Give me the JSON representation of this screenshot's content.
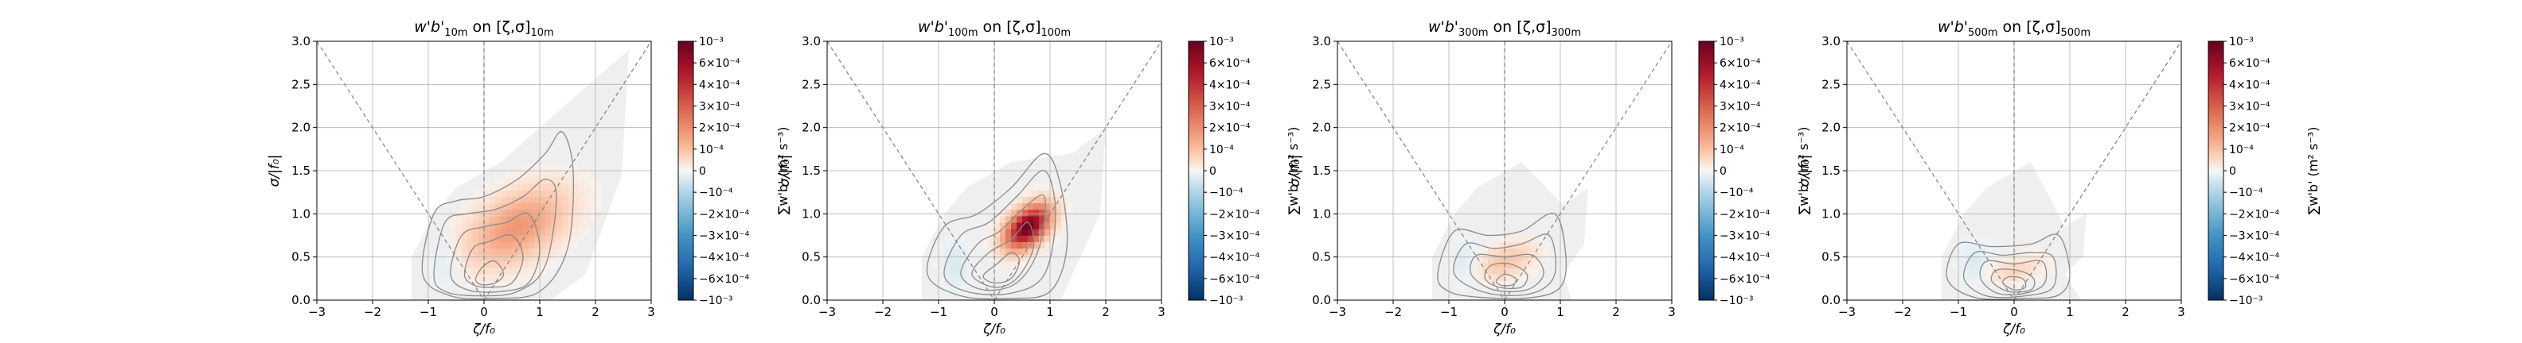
{
  "figure": {
    "layout": "1x4 panels"
  },
  "chart_data": [
    {
      "type": "heatmap",
      "title_main": "w'b'",
      "title_sub": "10m",
      "title_mid": " on [ζ,σ]",
      "title_end": "10m",
      "xlabel": "ζ/f₀",
      "ylabel": "σ/|f₀|",
      "xlim": [
        -3,
        3
      ],
      "ylim": [
        0,
        3
      ],
      "xticks": [
        "−3",
        "−2",
        "−1",
        "0",
        "1",
        "2",
        "3"
      ],
      "yticks": [
        "0.0",
        "0.5",
        "1.0",
        "1.5",
        "2.0",
        "2.5",
        "3.0"
      ],
      "grid": true,
      "colorbar": {
        "label": "∑w'b' (m² s⁻³)",
        "ticks": [
          "10⁻³",
          "6×10⁻⁴",
          "4×10⁻⁴",
          "3×10⁻⁴",
          "2×10⁻⁴",
          "10⁻⁴",
          "0",
          "−10⁻⁴",
          "−2×10⁻⁴",
          "−3×10⁻⁴",
          "−4×10⁻⁴",
          "−6×10⁻⁴",
          "−10⁻³"
        ],
        "cmap": "RdBu_r"
      },
      "hotspot": {
        "x": 0.6,
        "y": 0.85,
        "intensity": 0.3,
        "sx": 0.8,
        "sy": 0.4
      },
      "background_extent": {
        "xmax": 2.6,
        "ymax": 2.9
      },
      "contours": [
        {
          "x": [
            -1.1,
            -0.9,
            -0.5,
            0,
            0.6,
            1.1,
            1.4,
            1.6,
            1.5,
            1.0,
            0.2,
            -0.6,
            -1.1
          ],
          "y": [
            0.3,
            1.0,
            1.15,
            1.2,
            1.4,
            1.7,
            1.95,
            1.5,
            0.6,
            0.1,
            0.02,
            0.05,
            0.3
          ]
        },
        {
          "x": [
            -0.9,
            -0.7,
            -0.3,
            0.2,
            0.7,
            1.1,
            1.3,
            1.1,
            0.6,
            -0.1,
            -0.7,
            -0.9
          ],
          "y": [
            0.3,
            0.9,
            1.0,
            1.05,
            1.2,
            1.4,
            1.2,
            0.4,
            0.1,
            0.05,
            0.1,
            0.3
          ]
        },
        {
          "x": [
            -0.6,
            -0.4,
            0,
            0.4,
            0.8,
            1.0,
            0.8,
            0.3,
            -0.3,
            -0.6
          ],
          "y": [
            0.3,
            0.75,
            0.85,
            0.9,
            1.0,
            0.6,
            0.2,
            0.1,
            0.12,
            0.3
          ]
        },
        {
          "x": [
            -0.35,
            -0.2,
            0.1,
            0.5,
            0.7,
            0.5,
            0.1,
            -0.2,
            -0.35
          ],
          "y": [
            0.3,
            0.6,
            0.68,
            0.75,
            0.5,
            0.2,
            0.15,
            0.18,
            0.3
          ]
        },
        {
          "x": [
            -0.15,
            0,
            0.2,
            0.35,
            0.2,
            -0.05,
            -0.15
          ],
          "y": [
            0.25,
            0.4,
            0.45,
            0.3,
            0.2,
            0.18,
            0.25
          ]
        }
      ]
    },
    {
      "type": "heatmap",
      "title_main": "w'b'",
      "title_sub": "100m",
      "title_mid": " on [ζ,σ]",
      "title_end": "100m",
      "xlabel": "ζ/f₀",
      "ylabel": "σ/|f₀|",
      "xlim": [
        -3,
        3
      ],
      "ylim": [
        0,
        3
      ],
      "xticks": [
        "−3",
        "−2",
        "−1",
        "0",
        "1",
        "2",
        "3"
      ],
      "yticks": [
        "0.0",
        "0.5",
        "1.0",
        "1.5",
        "2.0",
        "2.5",
        "3.0"
      ],
      "grid": true,
      "colorbar": {
        "label": "∑w'b' (m² s⁻³)",
        "ticks": [
          "10⁻³",
          "6×10⁻⁴",
          "4×10⁻⁴",
          "3×10⁻⁴",
          "2×10⁻⁴",
          "10⁻⁴",
          "0",
          "−10⁻⁴",
          "−2×10⁻⁴",
          "−3×10⁻⁴",
          "−4×10⁻⁴",
          "−6×10⁻⁴",
          "−10⁻³"
        ],
        "cmap": "RdBu_r"
      },
      "hotspot": {
        "x": 0.6,
        "y": 0.85,
        "intensity": 1.0,
        "sx": 0.35,
        "sy": 0.22
      },
      "background_extent": {
        "xmax": 2.0,
        "ymax": 2.0
      },
      "contours": [
        {
          "x": [
            -1.2,
            -0.9,
            -0.3,
            0.3,
            0.9,
            1.2,
            1.3,
            1.0,
            0.3,
            -0.6,
            -1.2
          ],
          "y": [
            0.3,
            0.85,
            1.0,
            1.3,
            1.7,
            1.3,
            0.6,
            0.1,
            0.02,
            0.05,
            0.3
          ]
        },
        {
          "x": [
            -0.9,
            -0.6,
            -0.1,
            0.4,
            0.9,
            1.1,
            0.9,
            0.3,
            -0.5,
            -0.9
          ],
          "y": [
            0.3,
            0.75,
            0.9,
            1.2,
            1.5,
            1.0,
            0.3,
            0.08,
            0.1,
            0.3
          ]
        },
        {
          "x": [
            -0.6,
            -0.3,
            0.1,
            0.5,
            0.9,
            0.8,
            0.4,
            -0.2,
            -0.6
          ],
          "y": [
            0.3,
            0.65,
            0.8,
            1.05,
            1.2,
            0.6,
            0.2,
            0.12,
            0.3
          ]
        },
        {
          "x": [
            -0.4,
            -0.1,
            0.3,
            0.6,
            0.7,
            0.4,
            0,
            -0.4
          ],
          "y": [
            0.3,
            0.55,
            0.7,
            0.9,
            0.6,
            0.25,
            0.15,
            0.3
          ]
        },
        {
          "x": [
            -0.2,
            0.05,
            0.3,
            0.45,
            0.3,
            0,
            -0.2
          ],
          "y": [
            0.28,
            0.42,
            0.55,
            0.45,
            0.25,
            0.2,
            0.28
          ]
        }
      ]
    },
    {
      "type": "heatmap",
      "title_main": "w'b'",
      "title_sub": "300m",
      "title_mid": " on [ζ,σ]",
      "title_end": "300m",
      "xlabel": "ζ/f₀",
      "ylabel": "σ/|f₀|",
      "xlim": [
        -3,
        3
      ],
      "ylim": [
        0,
        3
      ],
      "xticks": [
        "−3",
        "−2",
        "−1",
        "0",
        "1",
        "2",
        "3"
      ],
      "yticks": [
        "0.0",
        "0.5",
        "1.0",
        "1.5",
        "2.0",
        "2.5",
        "3.0"
      ],
      "grid": true,
      "colorbar": {
        "label": "∑w'b' (m² s⁻³)",
        "ticks": [
          "10⁻³",
          "6×10⁻⁴",
          "4×10⁻⁴",
          "3×10⁻⁴",
          "2×10⁻⁴",
          "10⁻⁴",
          "0",
          "−10⁻⁴",
          "−2×10⁻⁴",
          "−3×10⁻⁴",
          "−4×10⁻⁴",
          "−6×10⁻⁴",
          "−10⁻³"
        ],
        "cmap": "RdBu_r"
      },
      "hotspot": {
        "x": 0.0,
        "y": 0.45,
        "intensity": 0.15,
        "sx": 0.5,
        "sy": 0.2
      },
      "background_extent": {
        "xmax": 1.5,
        "ymax": 1.3
      },
      "contours": [
        {
          "x": [
            -1.2,
            -0.9,
            -0.3,
            0.3,
            0.9,
            1.1,
            1.0,
            0.5,
            -0.4,
            -1.0,
            -1.2
          ],
          "y": [
            0.3,
            0.8,
            0.75,
            0.8,
            1.0,
            0.5,
            0.15,
            0.03,
            0.03,
            0.1,
            0.3
          ]
        },
        {
          "x": [
            -0.9,
            -0.7,
            -0.2,
            0.3,
            0.8,
            0.9,
            0.5,
            -0.3,
            -0.9
          ],
          "y": [
            0.3,
            0.65,
            0.6,
            0.65,
            0.75,
            0.3,
            0.08,
            0.08,
            0.3
          ]
        },
        {
          "x": [
            -0.6,
            -0.5,
            0,
            0.5,
            0.7,
            0.4,
            -0.2,
            -0.6
          ],
          "y": [
            0.3,
            0.52,
            0.5,
            0.52,
            0.3,
            0.12,
            0.12,
            0.3
          ]
        },
        {
          "x": [
            -0.35,
            -0.25,
            0.1,
            0.4,
            0.3,
            -0.1,
            -0.35
          ],
          "y": [
            0.25,
            0.4,
            0.42,
            0.3,
            0.15,
            0.15,
            0.25
          ]
        },
        {
          "x": [
            -0.15,
            0,
            0.2,
            0.15,
            -0.05,
            -0.15
          ],
          "y": [
            0.22,
            0.3,
            0.25,
            0.18,
            0.17,
            0.22
          ]
        }
      ]
    },
    {
      "type": "heatmap",
      "title_main": "w'b'",
      "title_sub": "500m",
      "title_mid": " on [ζ,σ]",
      "title_end": "500m",
      "xlabel": "ζ/f₀",
      "ylabel": "σ/|f₀|",
      "xlim": [
        -3,
        3
      ],
      "ylim": [
        0,
        3
      ],
      "xticks": [
        "−3",
        "−2",
        "−1",
        "0",
        "1",
        "2",
        "3"
      ],
      "yticks": [
        "0.0",
        "0.5",
        "1.0",
        "1.5",
        "2.0",
        "2.5",
        "3.0"
      ],
      "grid": true,
      "colorbar": {
        "label": "∑w'b' (m² s⁻³)",
        "ticks": [
          "10⁻³",
          "6×10⁻⁴",
          "4×10⁻⁴",
          "3×10⁻⁴",
          "2×10⁻⁴",
          "10⁻⁴",
          "0",
          "−10⁻⁴",
          "−2×10⁻⁴",
          "−3×10⁻⁴",
          "−4×10⁻⁴",
          "−6×10⁻⁴",
          "−10⁻³"
        ],
        "cmap": "RdBu_r"
      },
      "hotspot": {
        "x": 0.0,
        "y": 0.35,
        "intensity": 0.1,
        "sx": 0.5,
        "sy": 0.15
      },
      "background_extent": {
        "xmax": 1.3,
        "ymax": 1.0
      },
      "contours": [
        {
          "x": [
            -1.2,
            -1.0,
            -0.4,
            0.3,
            0.8,
            1.0,
            0.8,
            0.2,
            -0.7,
            -1.2
          ],
          "y": [
            0.25,
            0.65,
            0.62,
            0.65,
            0.75,
            0.3,
            0.06,
            0.02,
            0.03,
            0.25
          ]
        },
        {
          "x": [
            -0.9,
            -0.7,
            -0.2,
            0.3,
            0.7,
            0.7,
            0.2,
            -0.5,
            -0.9
          ],
          "y": [
            0.25,
            0.55,
            0.52,
            0.55,
            0.5,
            0.15,
            0.05,
            0.05,
            0.25
          ]
        },
        {
          "x": [
            -0.6,
            -0.5,
            0,
            0.5,
            0.55,
            0.2,
            -0.3,
            -0.6
          ],
          "y": [
            0.25,
            0.45,
            0.42,
            0.45,
            0.2,
            0.08,
            0.08,
            0.25
          ]
        },
        {
          "x": [
            -0.4,
            -0.3,
            0.1,
            0.35,
            0.3,
            -0.1,
            -0.4
          ],
          "y": [
            0.22,
            0.35,
            0.34,
            0.25,
            0.12,
            0.1,
            0.22
          ]
        },
        {
          "x": [
            -0.2,
            -0.1,
            0.15,
            0.2,
            0,
            -0.2
          ],
          "y": [
            0.2,
            0.27,
            0.25,
            0.15,
            0.12,
            0.2
          ]
        }
      ]
    }
  ]
}
